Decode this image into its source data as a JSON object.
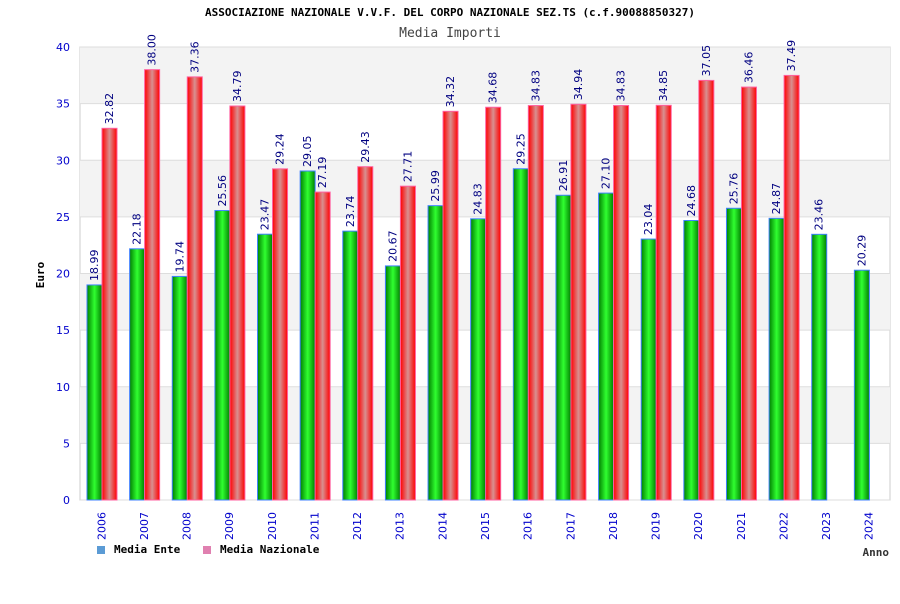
{
  "chart_data": {
    "type": "bar",
    "title": "ASSOCIAZIONE NAZIONALE V.V.F. DEL CORPO NAZIONALE SEZ.TS (c.f.90088850327)",
    "subtitle": "Media Importi",
    "xlabel": "Anno",
    "ylabel": "Euro",
    "ylim": [
      0,
      40
    ],
    "yticks": [
      "0",
      "5",
      "10",
      "15",
      "20",
      "25",
      "30",
      "35",
      "40"
    ],
    "categories": [
      "2006",
      "2007",
      "2008",
      "2009",
      "2010",
      "2011",
      "2012",
      "2013",
      "2014",
      "2015",
      "2016",
      "2017",
      "2018",
      "2019",
      "2020",
      "2021",
      "2022",
      "2023",
      "2024"
    ],
    "series": [
      {
        "name": "Media Ente",
        "color": "#00c000",
        "values": [
          18.99,
          22.18,
          19.74,
          25.56,
          23.47,
          29.05,
          23.74,
          20.67,
          25.99,
          24.83,
          29.25,
          26.91,
          27.1,
          23.04,
          24.68,
          25.76,
          24.87,
          23.46,
          20.29
        ],
        "labels": [
          "18.99",
          "22.18",
          "19.74",
          "25.56",
          "23.47",
          "29.05",
          "23.74",
          "20.67",
          "25.99",
          "24.83",
          "29.25",
          "26.91",
          "27.10",
          "23.04",
          "24.68",
          "25.76",
          "24.87",
          "23.46",
          "20.29"
        ]
      },
      {
        "name": "Media Nazionale",
        "color": "#ff2020",
        "values": [
          32.82,
          38.0,
          37.36,
          34.79,
          29.24,
          27.19,
          29.43,
          27.71,
          34.32,
          34.68,
          34.83,
          34.94,
          34.83,
          34.85,
          37.05,
          36.46,
          37.49,
          null,
          null
        ],
        "labels": [
          "32.82",
          "38.00",
          "37.36",
          "34.79",
          "29.24",
          "27.19",
          "29.43",
          "27.71",
          "34.32",
          "34.68",
          "34.83",
          "34.94",
          "34.83",
          "34.85",
          "37.05",
          "36.46",
          "37.49",
          "",
          ""
        ]
      }
    ],
    "legend_position": "bottom-left",
    "legend_colors": [
      "#5b9bd5",
      "#e080b0"
    ],
    "grid": true
  }
}
